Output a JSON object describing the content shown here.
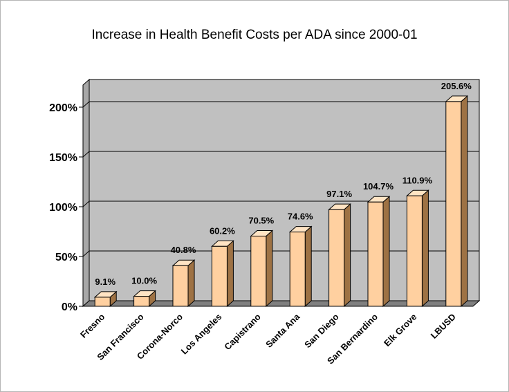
{
  "chart_data": {
    "type": "bar",
    "title": "Increase in Health Benefit Costs per ADA since 2000-01",
    "xlabel": "",
    "ylabel": "",
    "categories": [
      "Fresno",
      "San Francisco",
      "Corona-Norco",
      "Los Angeles",
      "Capistrano",
      "Santa Ana",
      "San Diego",
      "San Bernardino",
      "Elk Grove",
      "LBUSD"
    ],
    "values": [
      9.1,
      10.0,
      40.8,
      60.2,
      70.5,
      74.6,
      97.1,
      104.7,
      110.9,
      205.6
    ],
    "data_labels": [
      "9.1%",
      "10.0%",
      "40.8%",
      "60.2%",
      "70.5%",
      "74.6%",
      "97.1%",
      "104.7%",
      "110.9%",
      "205.6%"
    ],
    "ylim": [
      0,
      200
    ],
    "yticks": [
      0,
      50,
      100,
      150,
      200
    ],
    "ytick_labels": [
      "0%",
      "50%",
      "100%",
      "150%",
      "200%"
    ],
    "grid": true,
    "legend": "none",
    "colors": {
      "bar_front": "#ffd0a0",
      "bar_side": "#9e7244",
      "bar_top": "#ffe4c4",
      "bar_edge": "#000000",
      "plot_back": "#c0c0c0",
      "plot_floor": "#808080"
    }
  }
}
